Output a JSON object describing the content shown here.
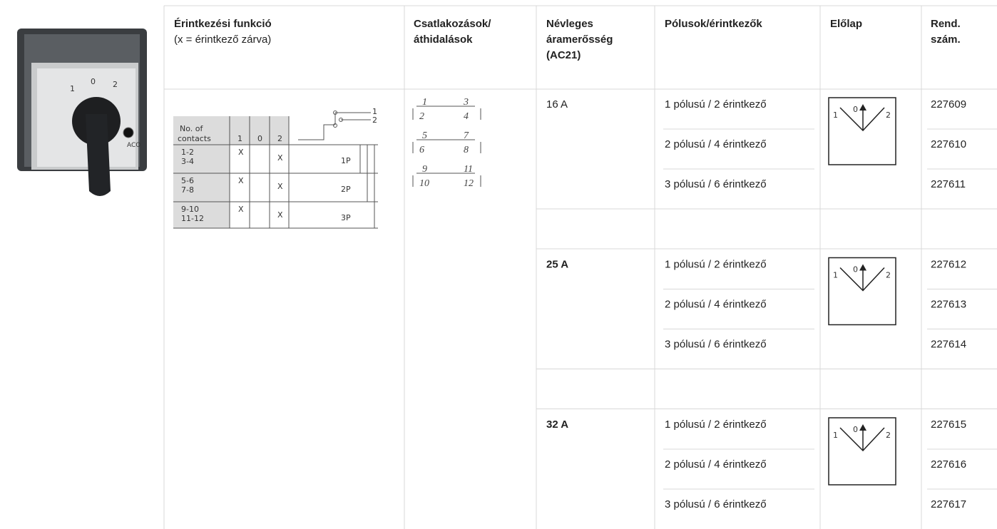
{
  "header": {
    "function_title": "Érintkezési funkció",
    "function_note": "(x = érintkező zárva)",
    "connections": [
      "Csatlakozások/",
      "áthidalások"
    ],
    "current": [
      "Névleges",
      "áramerősség",
      "(AC21)"
    ],
    "poles": "Pólusok/érintkezők",
    "front": "Előlap",
    "order": [
      "Rend.",
      "szám."
    ]
  },
  "product_image": {
    "dial": [
      "1",
      "0",
      "2"
    ],
    "brand": "ACO"
  },
  "function_diagram": {
    "header": [
      "No. of",
      "contacts"
    ],
    "positions": [
      "1",
      "0",
      "2"
    ],
    "switch_labels": [
      "1",
      "2"
    ],
    "rows": [
      {
        "contacts": [
          "1-2",
          "3-4"
        ],
        "marks": [
          "X",
          "X"
        ],
        "poles": "1P"
      },
      {
        "contacts": [
          "5-6",
          "7-8"
        ],
        "marks": [
          "X",
          "X"
        ],
        "poles": "2P"
      },
      {
        "contacts": [
          "9-10",
          "11-12"
        ],
        "marks": [
          "X",
          "X"
        ],
        "poles": "3P"
      }
    ]
  },
  "connection_diagram": {
    "pairs": [
      [
        "1",
        "3",
        "2",
        "4"
      ],
      [
        "5",
        "7",
        "6",
        "8"
      ],
      [
        "9",
        "11",
        "10",
        "12"
      ]
    ]
  },
  "groups": [
    {
      "current": "16 A",
      "bold": false,
      "front_plate": [
        "1",
        "0",
        "2"
      ],
      "rows": [
        {
          "poles": "1 pólusú / 2 érintkező",
          "order": "227609"
        },
        {
          "poles": "2 pólusú / 4 érintkező",
          "order": "227610"
        },
        {
          "poles": "3 pólusú / 6 érintkező",
          "order": "227611"
        }
      ]
    },
    {
      "current": "25 A",
      "bold": true,
      "front_plate": [
        "1",
        "0",
        "2"
      ],
      "rows": [
        {
          "poles": "1 pólusú / 2 érintkező",
          "order": "227612"
        },
        {
          "poles": "2 pólusú / 4 érintkező",
          "order": "227613"
        },
        {
          "poles": "3 pólusú / 6 érintkező",
          "order": "227614"
        }
      ]
    },
    {
      "current": "32 A",
      "bold": true,
      "front_plate": [
        "1",
        "0",
        "2"
      ],
      "rows": [
        {
          "poles": "1 pólusú / 2 érintkező",
          "order": "227615"
        },
        {
          "poles": "2 pólusú / 4 érintkező",
          "order": "227616"
        },
        {
          "poles": "3 pólusú / 6 érintkező",
          "order": "227617"
        }
      ]
    }
  ]
}
